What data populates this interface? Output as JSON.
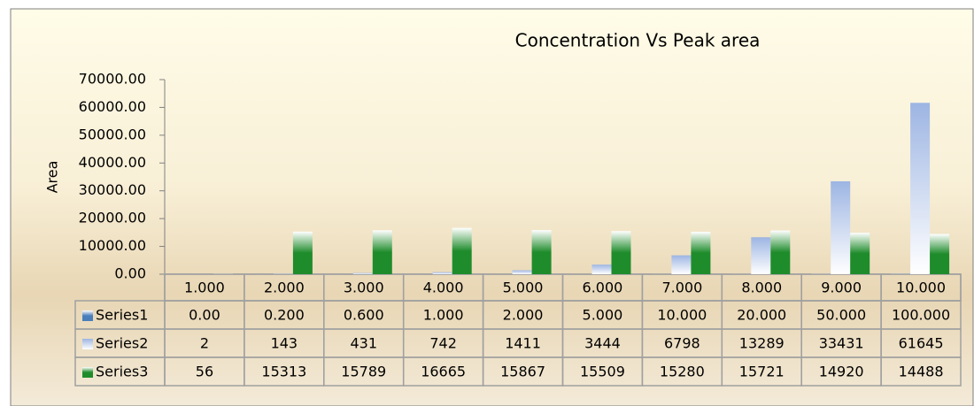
{
  "chart_data": {
    "type": "bar",
    "title": "Concentration Vs Peak area",
    "y_label": "Area",
    "categories": [
      "1.000",
      "2.000",
      "3.000",
      "4.000",
      "5.000",
      "6.000",
      "7.000",
      "8.000",
      "9.000",
      "10.000"
    ],
    "series": [
      {
        "name": "Series1",
        "color": "#4a7ebb",
        "values": [
          0,
          0.2,
          0.6,
          1,
          2,
          5,
          10,
          20,
          50,
          100
        ],
        "value_labels": [
          "0.00",
          "0.200",
          "0.600",
          "1.000",
          "2.000",
          "5.000",
          "10.000",
          "20.000",
          "50.000",
          "100.000"
        ]
      },
      {
        "name": "Series2",
        "color": "#9db5e3",
        "values": [
          2,
          143,
          431,
          742,
          1411,
          3444,
          6798,
          13289,
          33431,
          61645
        ]
      },
      {
        "name": "Series3",
        "color": "#1f8c2c",
        "values": [
          56,
          15313,
          15789,
          16665,
          15867,
          15509,
          15280,
          15721,
          14920,
          14488
        ]
      }
    ],
    "ylim": [
      0,
      70000
    ],
    "yticks": [
      {
        "value": 0,
        "label": "0.00"
      },
      {
        "value": 10000,
        "label": "10000.00"
      },
      {
        "value": 20000,
        "label": "20000.00"
      },
      {
        "value": 30000,
        "label": "30000.00"
      },
      {
        "value": 40000,
        "label": "40000.00"
      },
      {
        "value": 50000,
        "label": "50000.00"
      },
      {
        "value": 60000,
        "label": "60000.00"
      },
      {
        "value": 70000,
        "label": "70000.00"
      }
    ]
  }
}
